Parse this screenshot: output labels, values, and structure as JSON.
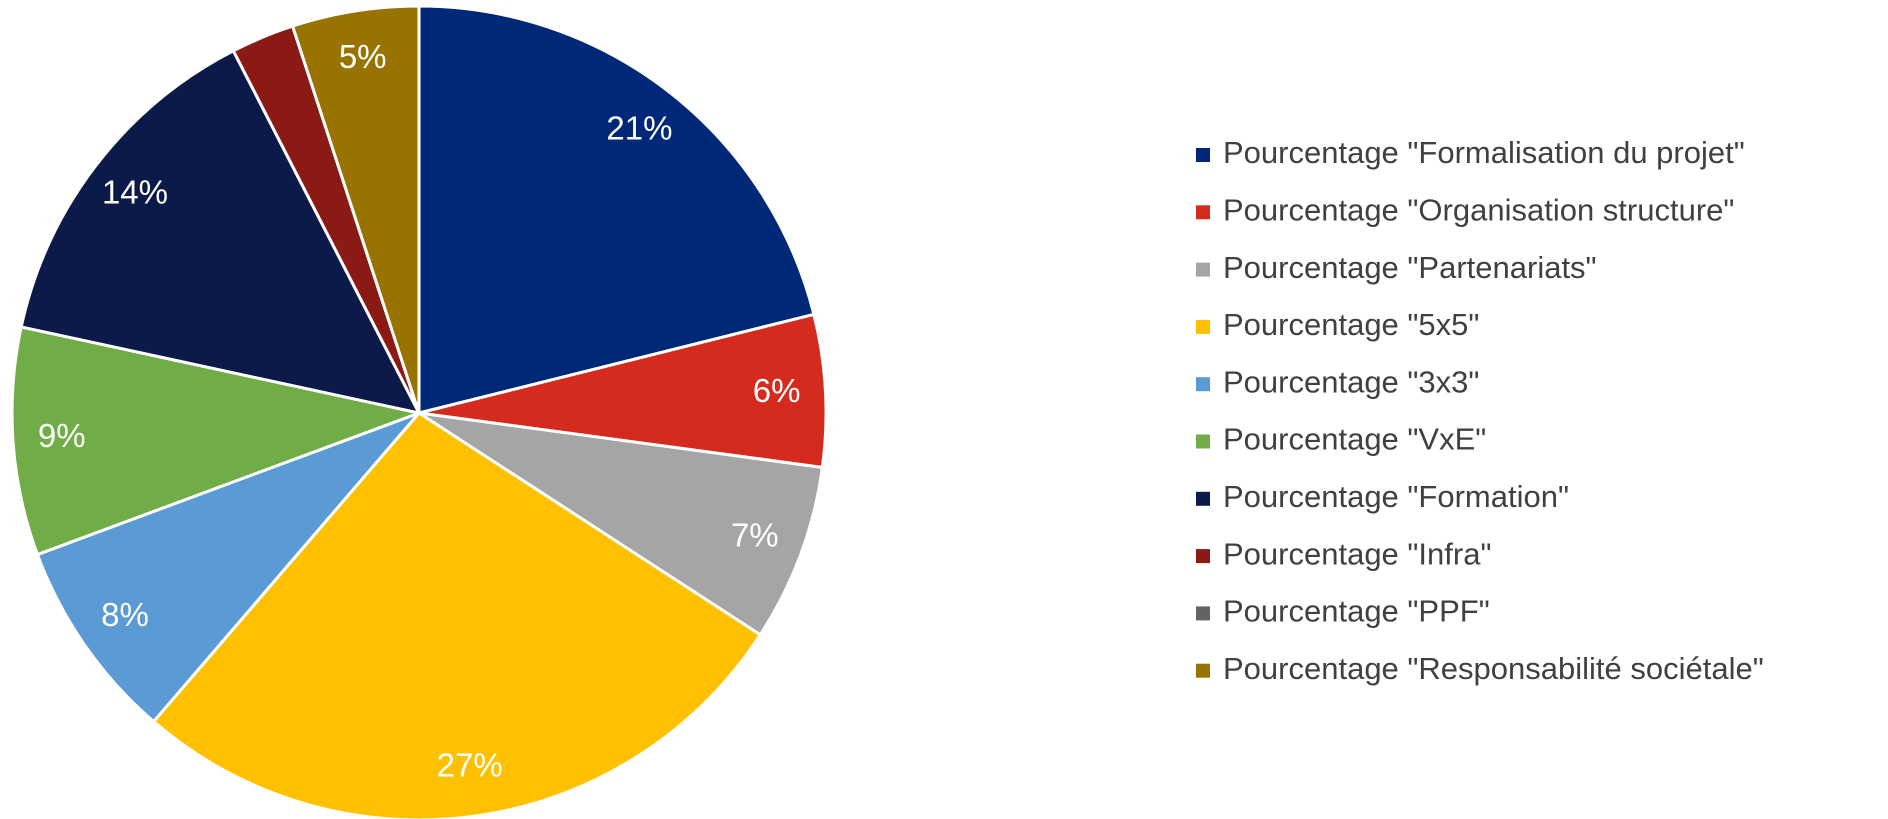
{
  "chart_data": {
    "type": "pie",
    "categories": [
      "Pourcentage \"Formalisation du projet\"",
      "Pourcentage \"Organisation structure\"",
      "Pourcentage \"Partenariats\"",
      "Pourcentage \"5x5\"",
      "Pourcentage \"3x3\"",
      "Pourcentage \"VxE\"",
      "Pourcentage \"Formation\"",
      "Pourcentage \"Infra\"",
      "Pourcentage \"PPF\"",
      "Pourcentage \"Responsabilité sociétale\""
    ],
    "values": [
      21,
      6,
      7,
      27,
      8,
      9,
      14,
      2.5,
      0,
      5
    ],
    "value_labels": [
      "21%",
      "6%",
      "7%",
      "27%",
      "8%",
      "9%",
      "14%",
      null,
      null,
      "5%"
    ],
    "colors": [
      "#002878",
      "#d52b1e",
      "#a5a5a5",
      "#ffc000",
      "#5b9bd5",
      "#70ad47",
      "#0b1a48",
      "#8b1a14",
      "#636363",
      "#997300"
    ],
    "legend": "right"
  }
}
